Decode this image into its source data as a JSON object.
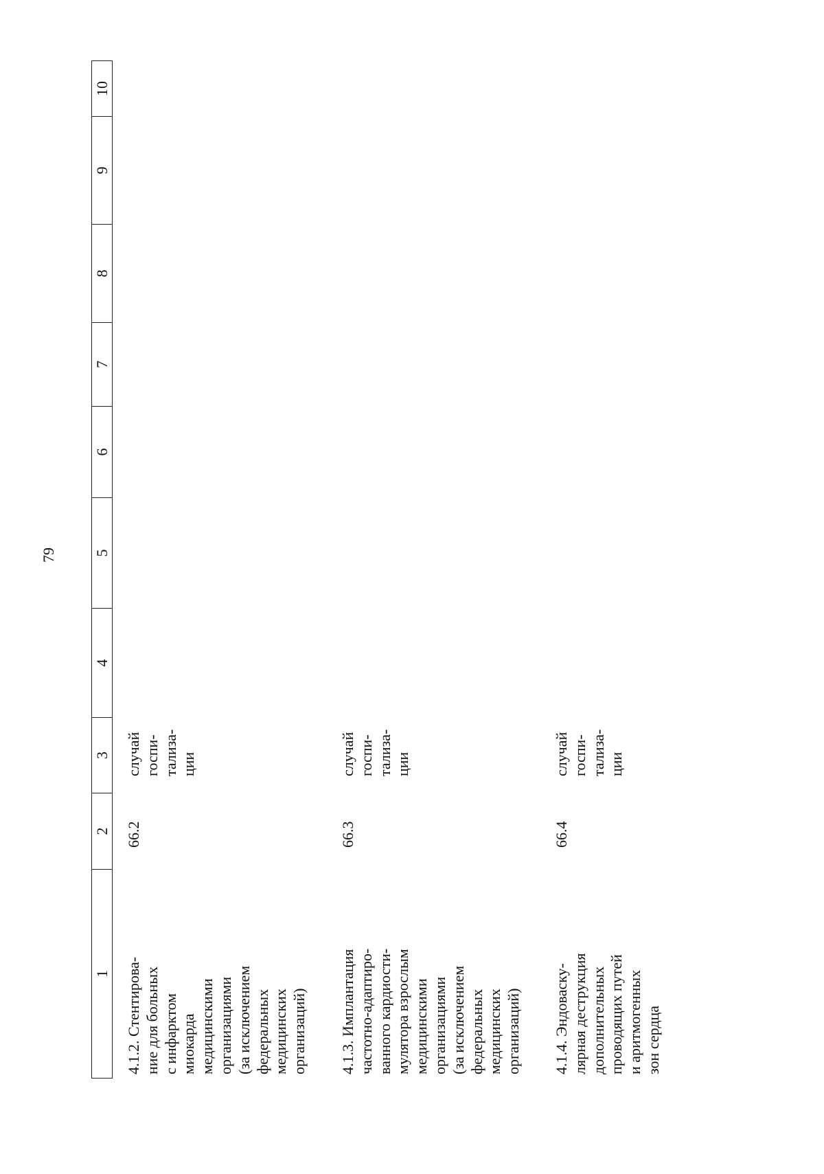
{
  "header": {
    "page_number": "79"
  },
  "table": {
    "columns": [
      "1",
      "2",
      "3",
      "4",
      "5",
      "6",
      "7",
      "8",
      "9",
      "10"
    ],
    "rows": [
      [
        "4.1.2. Стентирова-\nние для больных\nс инфарктом\nмиокарда\nмедицинскими\nорганизациями\n(за исключением\nфедеральных\nмедицинских\nорганизаций)",
        "66.2",
        "случай\nгоспи-\nтализа-\nции"
      ],
      [
        "4.1.3. Имплантация\nчастотно-адаптиро-\nванного кардиости-\nмулятора взрослым\nмедицинскими\nорганизациями\n(за исключением\nфедеральных\nмедицинских\nорганизаций)",
        "66.3",
        "случай\nгоспи-\nтализа-\nции"
      ],
      [
        "4.1.4. Эндоваску-\nлярная деструкция\nдополнительных\nпроводящих путей\nи аритмогенных\nзон сердца",
        "66.4",
        "случай\nгоспи-\nтализа-\nции"
      ]
    ]
  }
}
